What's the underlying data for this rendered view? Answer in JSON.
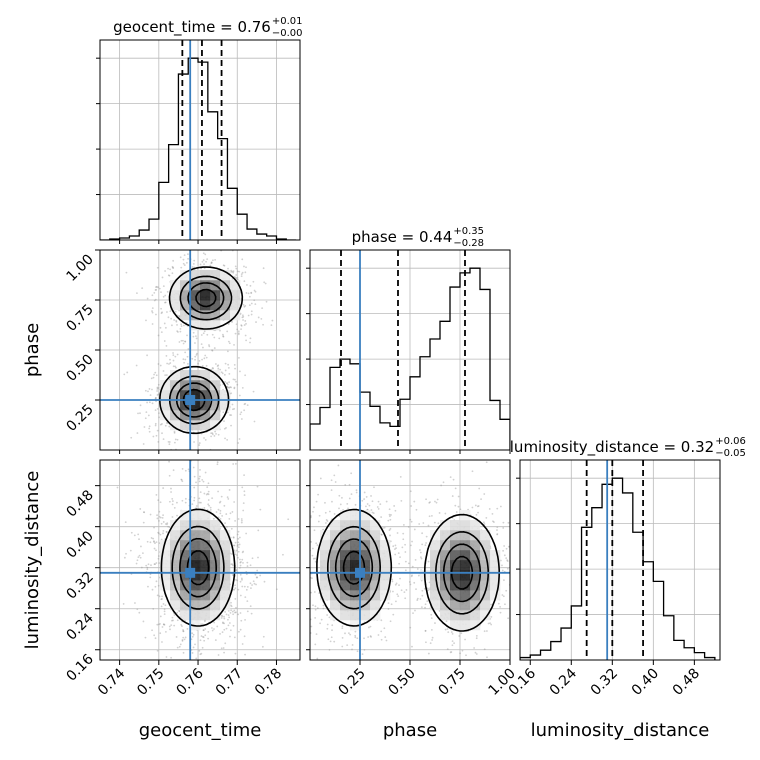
{
  "chart_data": {
    "type": "corner",
    "parameters": [
      "geocent_time",
      "phase",
      "luminosity_distance"
    ],
    "truths": {
      "geocent_time": 0.758,
      "phase": 0.25,
      "luminosity_distance": 0.31
    },
    "colors": {
      "truth": "#3a7fbf",
      "hist": "#000000",
      "grid": "#bbbbbb",
      "scatter": "#999999"
    },
    "grid": true,
    "titles": [
      {
        "param": "geocent_time",
        "main": "geocent_time = 0.76",
        "sup": "+0.01",
        "sub": "−0.00"
      },
      {
        "param": "phase",
        "main": "phase = 0.44",
        "sup": "+0.35",
        "sub": "−0.28"
      },
      {
        "param": "luminosity_distance",
        "main": "luminosity_distance = 0.32",
        "sup": "+0.06",
        "sub": "−0.05"
      }
    ],
    "axes": {
      "geocent_time": {
        "range": [
          0.735,
          0.786
        ],
        "ticks": [
          0.74,
          0.75,
          0.76,
          0.77,
          0.78
        ],
        "tick_labels": [
          "0.74",
          "0.75",
          "0.76",
          "0.77",
          "0.78"
        ],
        "label": "geocent_time"
      },
      "phase": {
        "range": [
          0.0,
          1.0
        ],
        "ticks": [
          0.25,
          0.5,
          0.75,
          1.0
        ],
        "tick_labels": [
          "0.25",
          "0.50",
          "0.75",
          "1.00"
        ],
        "label": "phase"
      },
      "luminosity_distance": {
        "range": [
          0.14,
          0.53
        ],
        "ticks": [
          0.16,
          0.24,
          0.32,
          0.4,
          0.48
        ],
        "tick_labels": [
          "0.16",
          "0.24",
          "0.32",
          "0.40",
          "0.48"
        ],
        "label": "luminosity_distance"
      }
    },
    "histograms": {
      "geocent_time": {
        "edges": [
          0.735,
          0.7375,
          0.74,
          0.7425,
          0.745,
          0.7475,
          0.75,
          0.7525,
          0.755,
          0.7575,
          0.76,
          0.7625,
          0.765,
          0.7675,
          0.77,
          0.7725,
          0.775,
          0.7775,
          0.78,
          0.7825,
          0.785
        ],
        "counts": [
          0,
          1,
          2,
          4,
          10,
          21,
          58,
          96,
          167,
          183,
          179,
          129,
          102,
          52,
          26,
          11,
          6,
          4,
          1,
          0
        ],
        "quantile_lines": [
          0.756,
          0.761,
          0.766
        ]
      },
      "phase": {
        "edges": [
          0.0,
          0.05,
          0.1,
          0.15,
          0.2,
          0.25,
          0.3,
          0.35,
          0.4,
          0.45,
          0.5,
          0.55,
          0.6,
          0.65,
          0.7,
          0.75,
          0.8,
          0.85,
          0.9,
          0.95,
          1.0
        ],
        "counts": [
          22,
          36,
          70,
          77,
          73,
          49,
          37,
          23,
          20,
          43,
          62,
          79,
          94,
          109,
          138,
          150,
          154,
          136,
          42,
          26
        ],
        "quantile_lines": [
          0.155,
          0.44,
          0.775
        ]
      },
      "luminosity_distance": {
        "edges": [
          0.14,
          0.16,
          0.18,
          0.2,
          0.22,
          0.24,
          0.26,
          0.28,
          0.3,
          0.32,
          0.34,
          0.36,
          0.38,
          0.4,
          0.42,
          0.44,
          0.46,
          0.48,
          0.5,
          0.52
        ],
        "counts": [
          2,
          4,
          8,
          15,
          26,
          44,
          108,
          124,
          143,
          148,
          136,
          104,
          80,
          64,
          36,
          16,
          10,
          6,
          2
        ],
        "quantile_lines": [
          0.27,
          0.32,
          0.38
        ]
      }
    },
    "densities": [
      {
        "x": "geocent_time",
        "y": "phase",
        "modes": [
          {
            "cx": 0.759,
            "cy": 0.25,
            "sx": 0.0042,
            "sy": 0.08,
            "w": 1.0
          },
          {
            "cx": 0.762,
            "cy": 0.76,
            "sx": 0.0045,
            "sy": 0.075,
            "w": 0.95
          }
        ]
      },
      {
        "x": "geocent_time",
        "y": "luminosity_distance",
        "modes": [
          {
            "cx": 0.76,
            "cy": 0.32,
            "sx": 0.0045,
            "sy": 0.055,
            "w": 1.0
          }
        ]
      },
      {
        "x": "phase",
        "y": "luminosity_distance",
        "modes": [
          {
            "cx": 0.22,
            "cy": 0.32,
            "sx": 0.09,
            "sy": 0.055,
            "w": 1.0
          },
          {
            "cx": 0.76,
            "cy": 0.31,
            "sx": 0.09,
            "sy": 0.055,
            "w": 1.0
          }
        ]
      }
    ]
  }
}
